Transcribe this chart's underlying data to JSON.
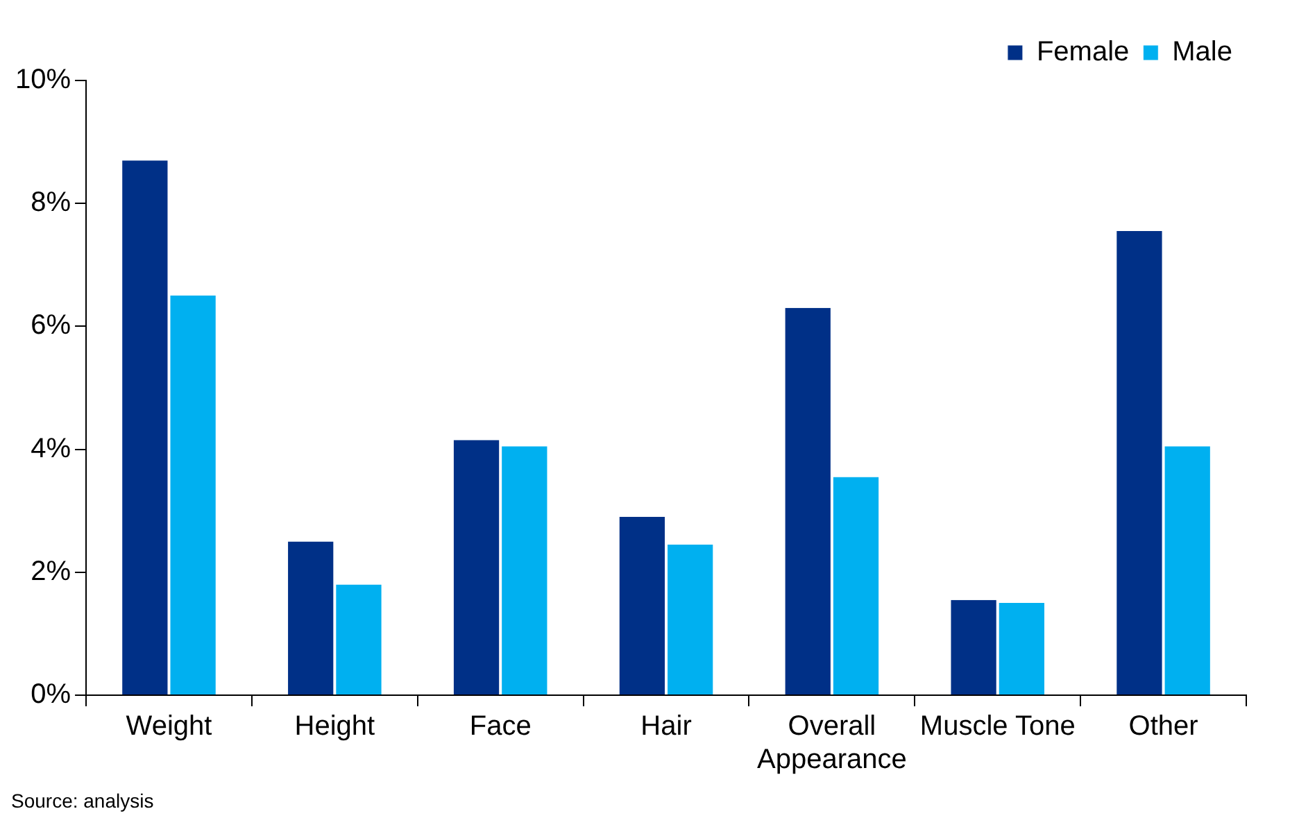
{
  "chart_data": {
    "type": "bar",
    "categories": [
      "Weight",
      "Height",
      "Face",
      "Hair",
      "Overall Appearance",
      "Muscle Tone",
      "Other"
    ],
    "series": [
      {
        "name": "Female",
        "color": "#003087",
        "values": [
          8.7,
          2.5,
          4.15,
          2.9,
          6.3,
          1.55,
          7.55
        ]
      },
      {
        "name": "Male",
        "color": "#00b0f0",
        "values": [
          6.5,
          1.8,
          4.05,
          2.45,
          3.55,
          1.5,
          4.05
        ]
      }
    ],
    "ylim": [
      0,
      10
    ],
    "yticks": [
      {
        "value": 0,
        "label": "0%"
      },
      {
        "value": 2,
        "label": "2%"
      },
      {
        "value": 4,
        "label": "4%"
      },
      {
        "value": 6,
        "label": "6%"
      },
      {
        "value": 8,
        "label": "8%"
      },
      {
        "value": 10,
        "label": "10%"
      }
    ],
    "grid": false,
    "legend": "top right",
    "annotations": [
      "Source: analysis"
    ]
  }
}
